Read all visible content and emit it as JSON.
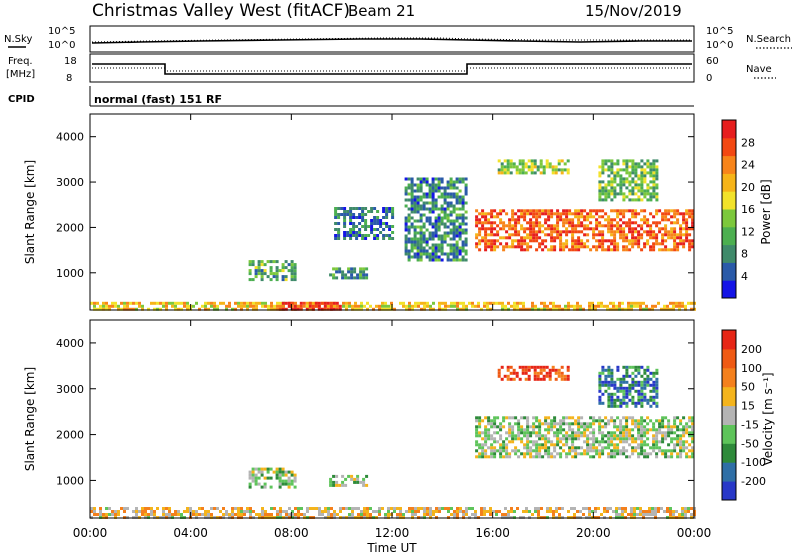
{
  "header": {
    "station": "Christmas Valley West (fitACF)",
    "beam": "Beam 21",
    "date": "15/Nov/2019"
  },
  "strips": {
    "nsky_label": "N.Sky",
    "nsky_ticks": [
      "10^5",
      "10^0"
    ],
    "nsearch_label": "N.Search",
    "nsearch_ticks": [
      "10^5",
      "10^0"
    ],
    "freq_label_1": "Freq.",
    "freq_label_2": "[MHz]",
    "freq_ticks": [
      "18",
      "8"
    ],
    "nave_label": "Nave",
    "nave_ticks": [
      "60",
      "0"
    ],
    "cpid_label": "CPID",
    "cpid_text": "normal (fast) 151 RF"
  },
  "colors": {
    "power_scale": [
      "#1414e6",
      "#2a5aa8",
      "#3f8a6a",
      "#4caf50",
      "#7cc83c",
      "#f2e22a",
      "#f6b418",
      "#f7841a",
      "#f34812",
      "#e61e1e"
    ],
    "velocity_scale": [
      "#2838c8",
      "#2f6fa6",
      "#2e8a3a",
      "#5ec45a",
      "#b4b4b4",
      "#f4b41c",
      "#f4801c",
      "#ef5a14",
      "#e62616"
    ]
  },
  "chart_data": [
    {
      "type": "heatmap",
      "name": "power-panel",
      "ylabel": "Slant Range [km]",
      "xlabel": "Time UT",
      "x_ticks": [
        "00:00",
        "04:00",
        "08:00",
        "12:00",
        "16:00",
        "20:00",
        "00:00"
      ],
      "x_hours": [
        0,
        4,
        8,
        12,
        16,
        20,
        24
      ],
      "y_ticks": [
        1000,
        2000,
        3000,
        4000
      ],
      "ylim": [
        180,
        4500
      ],
      "colorbar_label": "Power [dB]",
      "colorbar_ticks": [
        "28",
        "24",
        "20",
        "16",
        "12",
        "8",
        "4"
      ],
      "regions": [
        {
          "t0": 0.0,
          "t1": 24.0,
          "r0": 200,
          "r1": 360,
          "level": 0.62
        },
        {
          "t0": 7.5,
          "t1": 10.0,
          "r0": 200,
          "r1": 360,
          "level": 0.95
        },
        {
          "t0": 6.3,
          "t1": 8.2,
          "r0": 850,
          "r1": 1280,
          "level": 0.35
        },
        {
          "t0": 9.5,
          "t1": 11.0,
          "r0": 880,
          "r1": 1120,
          "level": 0.3
        },
        {
          "t0": 9.7,
          "t1": 12.0,
          "r0": 1750,
          "r1": 2450,
          "level": 0.2
        },
        {
          "t0": 12.5,
          "t1": 15.0,
          "r0": 1300,
          "r1": 3100,
          "level": 0.25
        },
        {
          "t0": 15.3,
          "t1": 24.0,
          "r0": 1500,
          "r1": 2400,
          "level": 0.82
        },
        {
          "t0": 16.2,
          "t1": 19.0,
          "r0": 3200,
          "r1": 3500,
          "level": 0.45
        },
        {
          "t0": 20.2,
          "t1": 22.5,
          "r0": 2600,
          "r1": 3500,
          "level": 0.4
        }
      ]
    },
    {
      "type": "heatmap",
      "name": "velocity-panel",
      "ylabel": "Slant Range [km]",
      "xlabel": "Time UT",
      "x_ticks": [
        "00:00",
        "04:00",
        "08:00",
        "12:00",
        "16:00",
        "20:00",
        "00:00"
      ],
      "x_hours": [
        0,
        4,
        8,
        12,
        16,
        20,
        24
      ],
      "y_ticks": [
        1000,
        2000,
        3000,
        4000
      ],
      "ylim": [
        180,
        4500
      ],
      "colorbar_label": "Velocity [m s⁻¹]",
      "colorbar_ticks": [
        "200",
        "100",
        "50",
        "15",
        "-15",
        "-50",
        "-100",
        "-200"
      ],
      "regions": [
        {
          "t0": 0.0,
          "t1": 24.0,
          "r0": 200,
          "r1": 420,
          "level": 0.58
        },
        {
          "t0": 6.3,
          "t1": 8.2,
          "r0": 850,
          "r1": 1280,
          "level": 0.45
        },
        {
          "t0": 9.5,
          "t1": 11.0,
          "r0": 880,
          "r1": 1120,
          "level": 0.45
        },
        {
          "t0": 15.3,
          "t1": 24.0,
          "r0": 1500,
          "r1": 2400,
          "level": 0.45
        },
        {
          "t0": 16.2,
          "t1": 19.0,
          "r0": 3200,
          "r1": 3500,
          "level": 0.9
        },
        {
          "t0": 20.2,
          "t1": 22.5,
          "r0": 2600,
          "r1": 3500,
          "level": 0.2
        }
      ]
    }
  ]
}
